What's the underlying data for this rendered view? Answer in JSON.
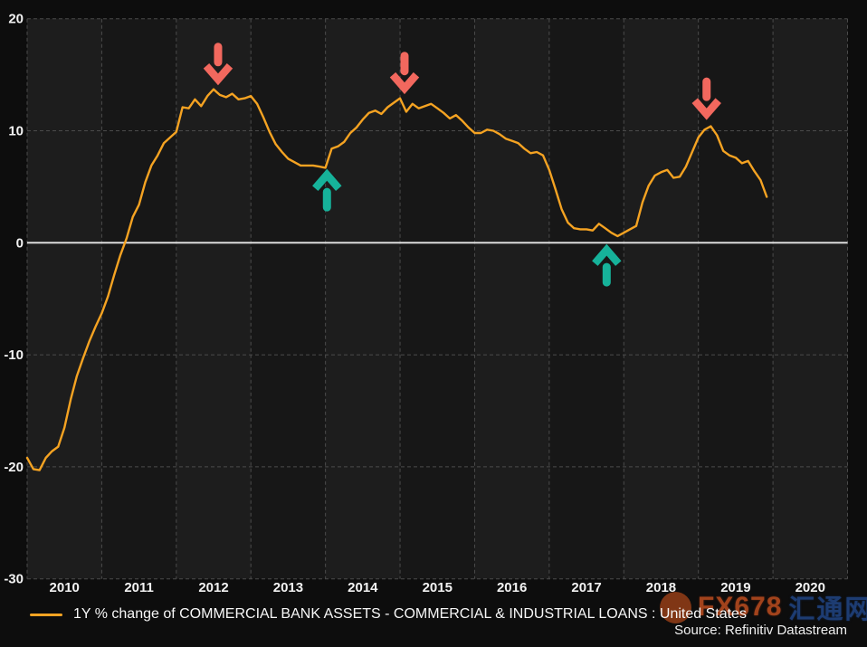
{
  "legend": {
    "label": "1Y % change of COMMERCIAL BANK ASSETS - COMMERCIAL & INDUSTRIAL LOANS : United States"
  },
  "source": "Source: Refinitiv Datastream",
  "watermark": {
    "brand": "FX678",
    "cn": "汇通网",
    "brand_color": "#a2431c",
    "cn_color": "#1d3c72"
  },
  "chart_data": {
    "type": "line",
    "title": "",
    "series_name": "1Y % change of COMMERCIAL BANK ASSETS - COMMERCIAL & INDUSTRIAL LOANS : United States",
    "x_start_year": 2010,
    "x_step_months": 1,
    "x_tick_years": [
      2010,
      2011,
      2012,
      2013,
      2014,
      2015,
      2016,
      2017,
      2018,
      2019,
      2020
    ],
    "y_ticks": [
      20,
      10,
      0,
      -10,
      -20,
      -30
    ],
    "xlim": [
      2010,
      2021
    ],
    "ylim": [
      -30,
      20
    ],
    "grid": "dashed",
    "zero_line": true,
    "legend_position": "bottom-left",
    "values": [
      -19.2,
      -20.2,
      -20.3,
      -19.2,
      -18.6,
      -18.2,
      -16.5,
      -14.0,
      -11.9,
      -10.3,
      -8.8,
      -7.5,
      -6.3,
      -4.8,
      -2.9,
      -1.1,
      0.4,
      2.3,
      3.4,
      5.4,
      6.9,
      7.8,
      8.9,
      9.4,
      9.9,
      12.1,
      12.0,
      12.8,
      12.2,
      13.1,
      13.7,
      13.2,
      13.0,
      13.3,
      12.8,
      12.9,
      13.1,
      12.4,
      11.2,
      9.9,
      8.8,
      8.1,
      7.5,
      7.2,
      6.9,
      6.9,
      6.9,
      6.8,
      6.7,
      8.4,
      8.6,
      9.0,
      9.8,
      10.3,
      11.0,
      11.6,
      11.8,
      11.5,
      12.1,
      12.5,
      12.9,
      11.7,
      12.4,
      12.0,
      12.2,
      12.4,
      12.0,
      11.6,
      11.1,
      11.4,
      10.9,
      10.3,
      9.8,
      9.8,
      10.1,
      10.0,
      9.7,
      9.3,
      9.1,
      8.9,
      8.4,
      8.0,
      8.1,
      7.8,
      6.5,
      4.8,
      3.0,
      1.8,
      1.3,
      1.2,
      1.2,
      1.1,
      1.7,
      1.3,
      0.9,
      0.6,
      0.9,
      1.2,
      1.5,
      3.6,
      5.1,
      6.0,
      6.3,
      6.5,
      5.8,
      5.9,
      6.8,
      8.1,
      9.4,
      10.1,
      10.4,
      9.6,
      8.2,
      7.8,
      7.6,
      7.1,
      7.3,
      6.4,
      5.6,
      4.1
    ],
    "annotations": [
      {
        "shape": "down-arrow",
        "year": 2012.56,
        "value": 14.5
      },
      {
        "shape": "up-arrow",
        "year": 2014.02,
        "value": 6.15
      },
      {
        "shape": "down-arrow",
        "year": 2015.06,
        "value": 13.7
      },
      {
        "shape": "up-arrow",
        "year": 2017.77,
        "value": -0.55
      },
      {
        "shape": "down-arrow",
        "year": 2019.11,
        "value": 11.4
      }
    ],
    "colors": {
      "line": "#f5a322",
      "background": "#0d0d0d",
      "band_even": "#1d1d1d",
      "band_odd": "#171717",
      "grid": "#4b4b4b",
      "zero": "#dcdcdc",
      "label": "#f2f2f2",
      "arrow_down": "#f2685e",
      "arrow_up": "#16b29a"
    }
  }
}
